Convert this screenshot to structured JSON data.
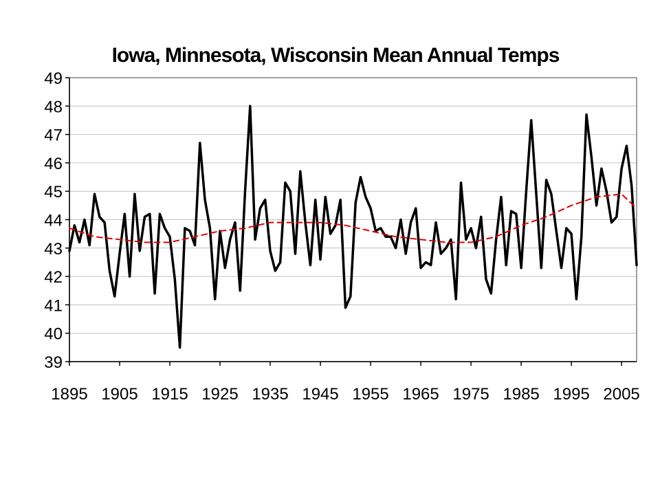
{
  "chart_data": {
    "type": "line",
    "title": "Iowa, Minnesota, Wisconsin Mean Annual Temps",
    "xlabel": "",
    "ylabel": "",
    "xlim": [
      1895,
      2008
    ],
    "ylim": [
      39,
      49
    ],
    "x_ticks": [
      1895,
      1905,
      1915,
      1925,
      1935,
      1945,
      1955,
      1965,
      1975,
      1985,
      1995,
      2005
    ],
    "y_ticks": [
      39,
      40,
      41,
      42,
      43,
      44,
      45,
      46,
      47,
      48,
      49
    ],
    "grid": "horizontal",
    "legend": "none",
    "colors": {
      "annual": "#000000",
      "trend": "#e00000",
      "grid": "#c0c0c0"
    },
    "series": [
      {
        "style": "solid",
        "x": [
          1895,
          1896,
          1897,
          1898,
          1899,
          1900,
          1901,
          1902,
          1903,
          1904,
          1905,
          1906,
          1907,
          1908,
          1909,
          1910,
          1911,
          1912,
          1913,
          1914,
          1915,
          1916,
          1917,
          1918,
          1919,
          1920,
          1921,
          1922,
          1923,
          1924,
          1925,
          1926,
          1927,
          1928,
          1929,
          1930,
          1931,
          1932,
          1933,
          1934,
          1935,
          1936,
          1937,
          1938,
          1939,
          1940,
          1941,
          1942,
          1943,
          1944,
          1945,
          1946,
          1947,
          1948,
          1949,
          1950,
          1951,
          1952,
          1953,
          1954,
          1955,
          1956,
          1957,
          1958,
          1959,
          1960,
          1961,
          1962,
          1963,
          1964,
          1965,
          1966,
          1967,
          1968,
          1969,
          1970,
          1971,
          1972,
          1973,
          1974,
          1975,
          1976,
          1977,
          1978,
          1979,
          1980,
          1981,
          1982,
          1983,
          1984,
          1985,
          1986,
          1987,
          1988,
          1989,
          1990,
          1991,
          1992,
          1993,
          1994,
          1995,
          1996,
          1997,
          1998,
          1999,
          2000,
          2001,
          2002,
          2003,
          2004,
          2005,
          2006,
          2007,
          2008
        ],
        "values": [
          42.9,
          43.8,
          43.2,
          44.0,
          43.1,
          44.9,
          44.1,
          43.9,
          42.2,
          41.3,
          42.8,
          44.2,
          42.0,
          44.9,
          42.9,
          44.1,
          44.2,
          41.4,
          44.2,
          43.7,
          43.4,
          41.9,
          39.5,
          43.7,
          43.6,
          43.1,
          46.7,
          44.7,
          43.7,
          41.2,
          43.6,
          42.3,
          43.3,
          43.9,
          41.5,
          45.0,
          48.0,
          43.3,
          44.4,
          44.7,
          42.9,
          42.2,
          42.5,
          45.3,
          45.0,
          42.8,
          45.7,
          43.9,
          42.4,
          44.7,
          42.6,
          44.8,
          43.5,
          43.8,
          44.7,
          40.9,
          41.3,
          44.6,
          45.5,
          44.8,
          44.4,
          43.6,
          43.7,
          43.4,
          43.4,
          43.0,
          44.0,
          42.8,
          43.9,
          44.4,
          42.3,
          42.5,
          42.4,
          43.9,
          42.8,
          43.0,
          43.3,
          41.2,
          45.3,
          43.3,
          43.7,
          43.0,
          44.1,
          41.9,
          41.4,
          43.3,
          44.8,
          42.4,
          44.3,
          44.2,
          42.3,
          45.0,
          47.5,
          44.9,
          42.3,
          45.4,
          44.9,
          43.6,
          42.3,
          43.7,
          43.5,
          41.2,
          43.4,
          47.7,
          46.2,
          44.5,
          45.8,
          45.0,
          43.9,
          44.1,
          45.8,
          46.6,
          45.2,
          42.4
        ]
      },
      {
        "style": "dashed",
        "x": [
          1895,
          1900,
          1905,
          1910,
          1915,
          1920,
          1925,
          1930,
          1935,
          1940,
          1945,
          1950,
          1955,
          1960,
          1965,
          1970,
          1975,
          1980,
          1985,
          1990,
          1995,
          2000,
          2005,
          2008
        ],
        "values": [
          43.7,
          43.4,
          43.3,
          43.2,
          43.2,
          43.4,
          43.6,
          43.7,
          43.9,
          43.9,
          43.9,
          43.8,
          43.6,
          43.4,
          43.3,
          43.2,
          43.2,
          43.4,
          43.8,
          44.1,
          44.5,
          44.8,
          44.9,
          44.4
        ]
      }
    ]
  }
}
